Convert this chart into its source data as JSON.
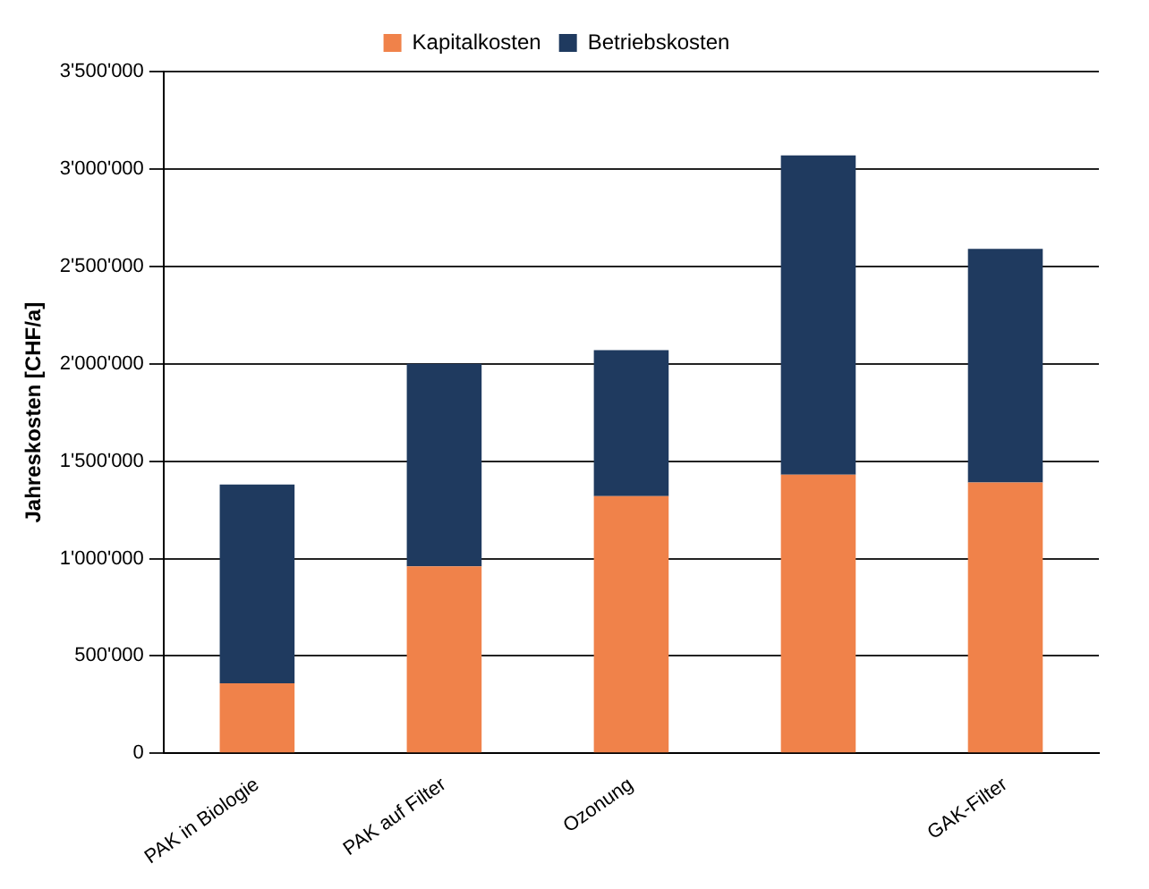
{
  "chart_data": {
    "type": "bar",
    "stacked": true,
    "ylabel": "Jahreskosten [CHF/a]",
    "categories": [
      "PAK in Biologie",
      "PAK auf Filter",
      "Ozonung",
      null,
      "GAK-Filter"
    ],
    "series": [
      {
        "name": "Kapitalkosten",
        "color": "#f0824a",
        "values": [
          360000,
          960000,
          1320000,
          1430000,
          1390000
        ]
      },
      {
        "name": "Betriebskosten",
        "color": "#1f3a5f",
        "values": [
          1020000,
          1040000,
          750000,
          1640000,
          1200000
        ]
      }
    ],
    "ylim": [
      0,
      3500000
    ],
    "yticks": [
      0,
      {
        "value": 500000,
        "label": "500'000"
      },
      {
        "value": 1000000,
        "label": "1'000'000"
      },
      {
        "value": 1500000,
        "label": "1'500'000"
      },
      {
        "value": 2000000,
        "label": "2'000'000"
      },
      {
        "value": 2500000,
        "label": "2'500'000"
      },
      {
        "value": 3000000,
        "label": "3'000'000"
      },
      {
        "value": 3500000,
        "label": "3'500'000"
      }
    ],
    "grid": "y",
    "legend": "top"
  }
}
